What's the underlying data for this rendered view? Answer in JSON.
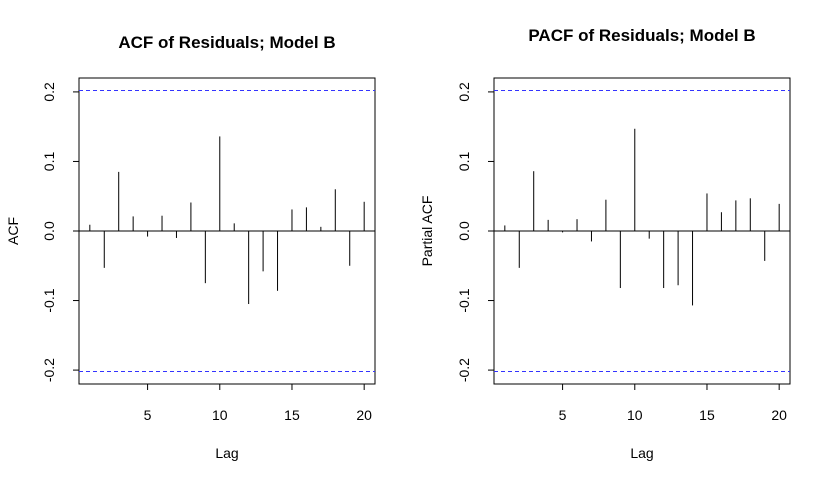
{
  "chart_data": [
    {
      "type": "bar",
      "title": "ACF of Residuals; Model B",
      "xlabel": "Lag",
      "ylabel": "ACF",
      "x": [
        1,
        2,
        3,
        4,
        5,
        6,
        7,
        8,
        9,
        10,
        11,
        12,
        13,
        14,
        15,
        16,
        17,
        18,
        19,
        20
      ],
      "values": [
        0.009,
        -0.053,
        0.085,
        0.021,
        -0.008,
        0.022,
        -0.01,
        0.041,
        -0.075,
        0.136,
        0.011,
        -0.105,
        -0.058,
        -0.086,
        0.031,
        0.034,
        0.006,
        0.06,
        -0.05,
        0.042
      ],
      "xlim": [
        0.25,
        20.75
      ],
      "ylim": [
        -0.22,
        0.22
      ],
      "xticks": [
        5,
        10,
        15,
        20
      ],
      "yticks": [
        -0.2,
        -0.1,
        0.0,
        0.1,
        0.2
      ],
      "xtick_labels": [
        "5",
        "10",
        "15",
        "20"
      ],
      "ytick_labels": [
        "-0.2",
        "-0.1",
        "0.0",
        "0.1",
        "0.2"
      ],
      "confidence_bound": 0.202,
      "bound_color": "#3333ff",
      "grid": false
    },
    {
      "type": "bar",
      "title": "PACF of Residuals; Model B",
      "xlabel": "Lag",
      "ylabel": "Partial ACF",
      "x": [
        1,
        2,
        3,
        4,
        5,
        6,
        7,
        8,
        9,
        10,
        11,
        12,
        13,
        14,
        15,
        16,
        17,
        18,
        19,
        20
      ],
      "values": [
        0.008,
        -0.053,
        0.086,
        0.016,
        -0.002,
        0.017,
        -0.015,
        0.045,
        -0.082,
        0.147,
        -0.011,
        -0.082,
        -0.078,
        -0.107,
        0.054,
        0.027,
        0.044,
        0.047,
        -0.043,
        0.039
      ],
      "xlim": [
        0.25,
        20.75
      ],
      "ylim": [
        -0.22,
        0.22
      ],
      "xticks": [
        5,
        10,
        15,
        20
      ],
      "yticks": [
        -0.2,
        -0.1,
        0.0,
        0.1,
        0.2
      ],
      "xtick_labels": [
        "5",
        "10",
        "15",
        "20"
      ],
      "ytick_labels": [
        "-0.2",
        "-0.1",
        "0.0",
        "0.1",
        "0.2"
      ],
      "confidence_bound": 0.202,
      "bound_color": "#3333ff",
      "grid": false
    }
  ]
}
